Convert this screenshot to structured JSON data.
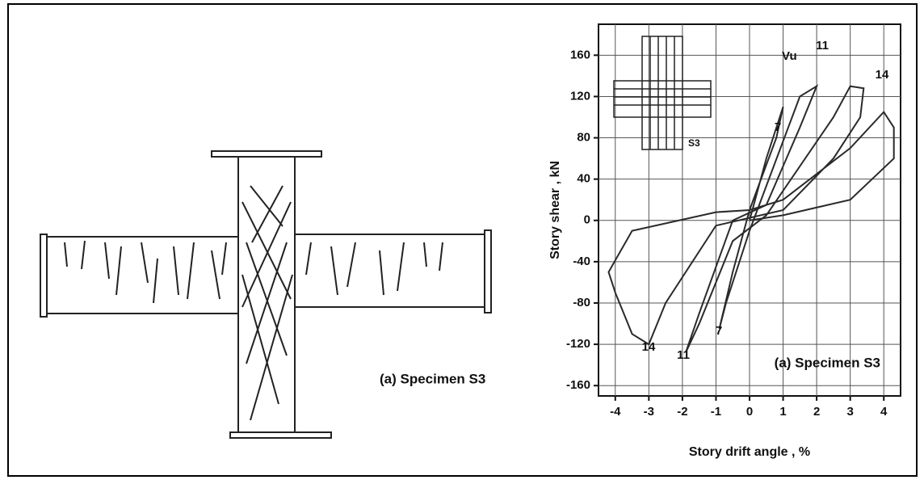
{
  "drawing": {
    "caption": "(a) Specimen S3"
  },
  "chart_data": {
    "type": "line",
    "xlabel": "Story drift angle , %",
    "ylabel": "Story shear , kN",
    "x": [
      0,
      0.5,
      1,
      0.8,
      0,
      -0.5,
      -0.9,
      -0.7,
      0,
      1.5,
      2,
      1.5,
      0.5,
      -0.5,
      -1.5,
      -1.9,
      -1.5,
      -0.5,
      0.5,
      2.5,
      3,
      3.4,
      3.3,
      2.5,
      1,
      -1,
      -2.5,
      -3,
      -3.5,
      -4,
      -4.2,
      -3.5,
      -1,
      0,
      1,
      3,
      4,
      4.3,
      4.3,
      3,
      1,
      0
    ],
    "values": [
      0,
      60,
      110,
      80,
      10,
      -50,
      -105,
      -80,
      -10,
      120,
      130,
      90,
      15,
      0,
      -90,
      -128,
      -100,
      -20,
      5,
      100,
      130,
      128,
      100,
      60,
      10,
      -5,
      -80,
      -120,
      -110,
      -70,
      -50,
      -10,
      8,
      10,
      20,
      70,
      105,
      90,
      60,
      20,
      5,
      0
    ],
    "color": "#2a2a2a",
    "xlim": [
      -4.5,
      4.5
    ],
    "ylim": [
      -170,
      190
    ],
    "xticks": [
      -4,
      -3,
      -2,
      -1,
      0,
      1,
      2,
      3,
      4
    ],
    "yticks": [
      -160,
      -120,
      -80,
      -40,
      0,
      40,
      80,
      120,
      160
    ],
    "grid": true,
    "annotations": [
      "Vu",
      "11",
      "14",
      "7",
      "7",
      "11",
      "14",
      "(a) Specimen S3"
    ],
    "inset_label": "S3"
  }
}
